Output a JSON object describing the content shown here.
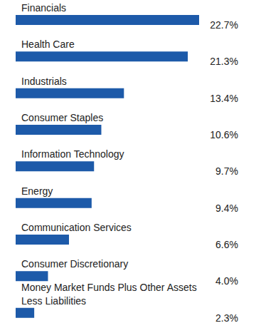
{
  "chart_data": {
    "type": "bar",
    "orientation": "horizontal",
    "categories": [
      "Financials",
      "Health Care",
      "Industrials",
      "Consumer Staples",
      "Information Technology",
      "Energy",
      "Communication Services",
      "Consumer Discretionary",
      "Money Market Funds Plus Other Assets Less Liabilities"
    ],
    "values": [
      22.7,
      21.3,
      13.4,
      10.6,
      9.7,
      9.4,
      6.6,
      4.0,
      2.3
    ],
    "value_labels": [
      "22.7%",
      "21.3%",
      "13.4%",
      "10.6%",
      "9.7%",
      "9.4%",
      "6.6%",
      "4.0%",
      "2.3%"
    ],
    "color": "#1d5aa9",
    "data_labels": true,
    "tick_labels": false,
    "grid": false
  }
}
